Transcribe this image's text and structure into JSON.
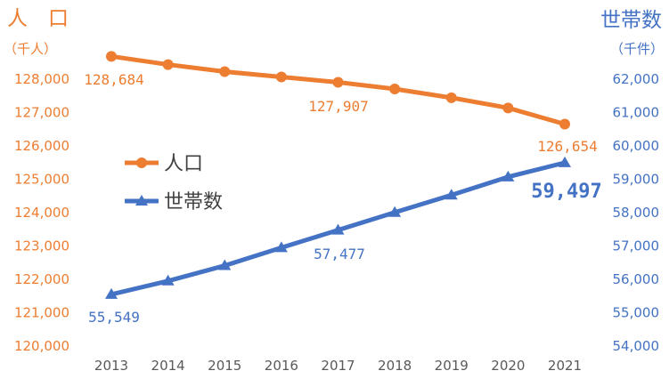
{
  "chart_data": {
    "type": "line",
    "x": [
      2013,
      2014,
      2015,
      2016,
      2017,
      2018,
      2019,
      2020,
      2021
    ],
    "left_axis": {
      "title": "人　口",
      "unit": "（千人）",
      "range": [
        120000,
        128000
      ],
      "ticks": [
        "120,000",
        "121,000",
        "122,000",
        "123,000",
        "124,000",
        "125,000",
        "126,000",
        "127,000",
        "128,000"
      ],
      "color": "#ED7D31"
    },
    "right_axis": {
      "title": "世帯数",
      "unit": "（千件）",
      "range": [
        54000,
        62000
      ],
      "ticks": [
        "54,000",
        "55,000",
        "56,000",
        "57,000",
        "58,000",
        "59,000",
        "60,000",
        "61,000",
        "62,000"
      ],
      "color": "#4472C4"
    },
    "series": [
      {
        "name": "人口",
        "axis": "left",
        "marker": "circle",
        "color": "#ED7D31",
        "values": [
          128684,
          128438,
          128226,
          128066,
          127907,
          127707,
          127444,
          127138,
          126654
        ],
        "data_labels": [
          {
            "index": 0,
            "text": "128,684"
          },
          {
            "index": 4,
            "text": "127,907"
          },
          {
            "index": 8,
            "text": "126,654"
          }
        ]
      },
      {
        "name": "世帯数",
        "axis": "right",
        "marker": "triangle",
        "color": "#4472C4",
        "values": [
          55549,
          55952,
          56412,
          56951,
          57477,
          58008,
          58527,
          59071,
          59497
        ],
        "data_labels": [
          {
            "index": 0,
            "text": "55,549"
          },
          {
            "index": 4,
            "text": "57,477"
          },
          {
            "index": 8,
            "text": "59,497",
            "emphasis": true
          }
        ]
      }
    ],
    "legend": "center-left",
    "grid": false
  }
}
